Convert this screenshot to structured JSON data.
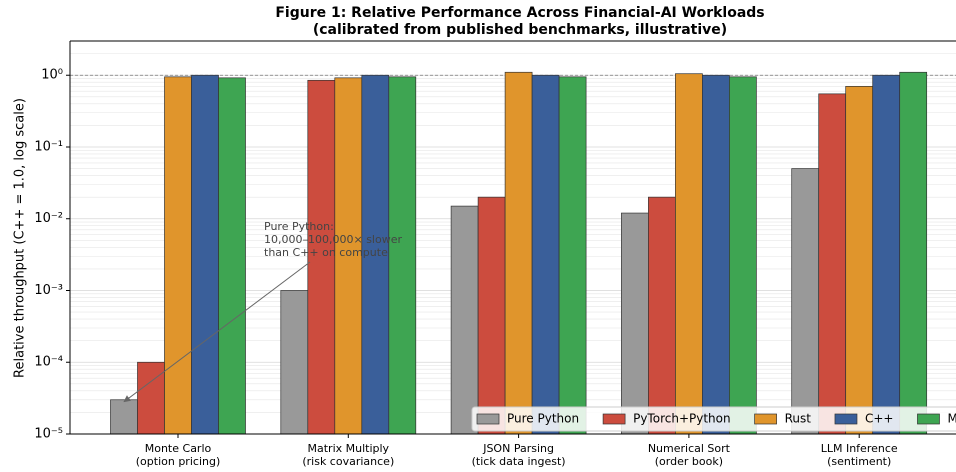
{
  "chart_data": {
    "type": "bar",
    "title": "Figure 1: Relative Performance Across Financial-AI Workloads",
    "subtitle": "(calibrated from published benchmarks, illustrative)",
    "y_label": "Relative throughput (C++ = 1.0, log scale)",
    "annotation": "Pure Python:\n10,000–100,000× slower\nthan C++ on compute",
    "categories": [
      "Monte Carlo\n(option pricing)",
      "Matrix Multiply\n(risk covariance)",
      "JSON Parsing\n(tick data ingest)",
      "Numerical Sort\n(order book)",
      "LLM Inference\n(sentiment)"
    ],
    "series": [
      {
        "name": "Pure Python",
        "color": "#999999",
        "values": [
          3e-05,
          0.001,
          0.015,
          0.012,
          0.05
        ]
      },
      {
        "name": "PyTorch+Python",
        "color": "#cc4c3e",
        "values": [
          0.0001,
          0.85,
          0.02,
          0.02,
          0.55
        ]
      },
      {
        "name": "Rust",
        "color": "#e0952c",
        "values": [
          0.95,
          0.92,
          1.1,
          1.05,
          0.7
        ]
      },
      {
        "name": "C++",
        "color": "#3a5f9a",
        "values": [
          1,
          1,
          1,
          1,
          1
        ]
      },
      {
        "name": "Mojo",
        "color": "#3ea552",
        "values": [
          0.92,
          0.95,
          0.95,
          0.95,
          1.1
        ]
      }
    ],
    "log_scale": true,
    "ylim": [
      1e-05,
      3
    ],
    "yticks": [
      {
        "value": 1e-05,
        "label": "10⁻⁵"
      },
      {
        "value": 0.0001,
        "label": "10⁻⁴"
      },
      {
        "value": 0.001,
        "label": "10⁻³"
      },
      {
        "value": 0.01,
        "label": "10⁻²"
      },
      {
        "value": 0.1,
        "label": "10⁻¹"
      },
      {
        "value": 1,
        "label": "10⁰"
      }
    ],
    "reference_line": 1,
    "grid": true,
    "legend": "lower right"
  }
}
